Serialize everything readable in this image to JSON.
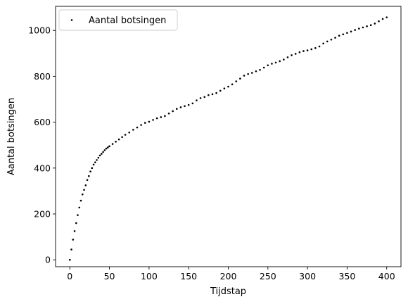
{
  "chart_data": {
    "type": "scatter",
    "title": "",
    "xlabel": "Tijdstap",
    "ylabel": "Aantal botsingen",
    "xlim": [
      -18,
      418
    ],
    "ylim": [
      -30,
      1105
    ],
    "xticks": [
      0,
      50,
      100,
      150,
      200,
      250,
      300,
      350,
      400
    ],
    "yticks": [
      0,
      200,
      400,
      600,
      800,
      1000
    ],
    "grid": false,
    "legend": {
      "position": "top-left",
      "entries": [
        "Aantal botsingen"
      ]
    },
    "marker_color": "#000000",
    "series": [
      {
        "name": "Aantal botsingen",
        "x": [
          0,
          2,
          4,
          6,
          8,
          10,
          12,
          14,
          16,
          18,
          20,
          22,
          24,
          26,
          28,
          30,
          32,
          34,
          36,
          38,
          40,
          42,
          44,
          46,
          48,
          50,
          54,
          58,
          62,
          66,
          70,
          75,
          80,
          85,
          90,
          95,
          100,
          105,
          110,
          115,
          120,
          125,
          130,
          135,
          140,
          145,
          150,
          155,
          160,
          165,
          170,
          175,
          180,
          185,
          190,
          195,
          200,
          205,
          210,
          215,
          220,
          225,
          230,
          235,
          240,
          245,
          250,
          255,
          260,
          265,
          270,
          275,
          280,
          285,
          290,
          295,
          300,
          305,
          310,
          315,
          320,
          325,
          330,
          335,
          340,
          345,
          350,
          355,
          360,
          365,
          370,
          375,
          380,
          385,
          390,
          395,
          400
        ],
        "y": [
          0,
          45,
          88,
          125,
          160,
          195,
          228,
          258,
          285,
          305,
          325,
          348,
          365,
          385,
          400,
          415,
          425,
          435,
          445,
          455,
          462,
          470,
          478,
          485,
          490,
          495,
          505,
          515,
          525,
          535,
          545,
          555,
          567,
          577,
          588,
          597,
          602,
          610,
          617,
          622,
          627,
          638,
          648,
          658,
          665,
          670,
          675,
          682,
          695,
          705,
          710,
          718,
          722,
          727,
          737,
          747,
          755,
          765,
          778,
          790,
          803,
          810,
          815,
          822,
          828,
          838,
          848,
          855,
          860,
          866,
          873,
          883,
          892,
          898,
          905,
          910,
          913,
          918,
          923,
          930,
          943,
          952,
          960,
          968,
          977,
          983,
          989,
          995,
          1002,
          1008,
          1013,
          1018,
          1023,
          1030,
          1040,
          1050,
          1057
        ]
      }
    ]
  }
}
